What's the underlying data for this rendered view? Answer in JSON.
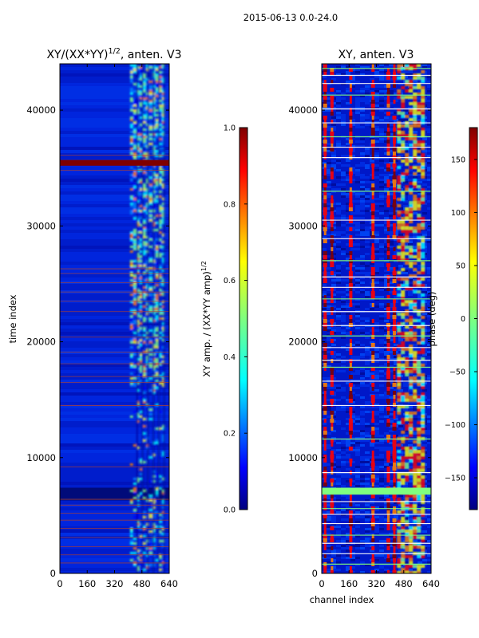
{
  "suptitle": "2015-06-13 0.0-24.0",
  "colors": {
    "jet": [
      "#00007f",
      "#0000ff",
      "#007fff",
      "#00ffff",
      "#7fff7f",
      "#ffff00",
      "#ff7f00",
      "#ff0000",
      "#7f0000"
    ],
    "background": "#ffffff",
    "flag_line": "#b04030",
    "white_line": "#ffffff"
  },
  "chart_data": [
    {
      "type": "heatmap",
      "title_main": "XY/(XX*YY)",
      "title_sup": "1/2",
      "title_rest": ", anten. V3",
      "xlabel": "",
      "ylabel": "time index",
      "xlim": [
        0,
        640
      ],
      "ylim": [
        0,
        44000
      ],
      "xticks": [
        0,
        160,
        320,
        480,
        640
      ],
      "yticks": [
        0,
        10000,
        20000,
        30000,
        40000
      ],
      "colorbar": {
        "label_main": "XY amp. / (XX*YY amp)",
        "label_sup": "1/2",
        "range": [
          0.0,
          1.0
        ],
        "ticks": [
          "0.0",
          "0.2",
          "0.4",
          "0.6",
          "0.8",
          "1.0"
        ]
      },
      "bright_channel_range": [
        410,
        600
      ],
      "saturated_band_time": [
        35200,
        35700
      ],
      "flag_times": [
        900,
        1600,
        2300,
        3100,
        3900,
        4600,
        5200,
        5900,
        6400,
        9200,
        14500,
        16500,
        17000,
        18100,
        19100,
        20400,
        22600,
        23500,
        24300,
        25100,
        25900,
        26300,
        34800,
        36100
      ]
    },
    {
      "type": "heatmap",
      "title": "XY, anten. V3",
      "xlabel": "channel index",
      "ylabel": "",
      "xlim": [
        0,
        640
      ],
      "ylim": [
        0,
        44000
      ],
      "xticks": [
        0,
        160,
        320,
        480,
        640
      ],
      "yticks": [
        0,
        10000,
        20000,
        30000,
        40000
      ],
      "colorbar": {
        "label": "phase (deg)",
        "range": [
          -180,
          180
        ],
        "ticks": [
          "-150",
          "-100",
          "-50",
          "0",
          "50",
          "100",
          "150"
        ]
      },
      "red_stripe_channels": [
        20,
        60,
        170,
        300,
        390,
        425
      ],
      "green_band_time": [
        6800,
        7400
      ],
      "flag_times": [
        800,
        1700,
        2600,
        3300,
        4300,
        5100,
        5600,
        6200,
        8700,
        11600,
        14500,
        16600,
        17800,
        18400,
        19500,
        20500,
        21400,
        22600,
        23700,
        24700,
        25600,
        27000,
        28900,
        30500,
        33000,
        35900,
        36800,
        37700,
        38900,
        40100,
        41300,
        42300,
        43000,
        43600
      ]
    }
  ]
}
